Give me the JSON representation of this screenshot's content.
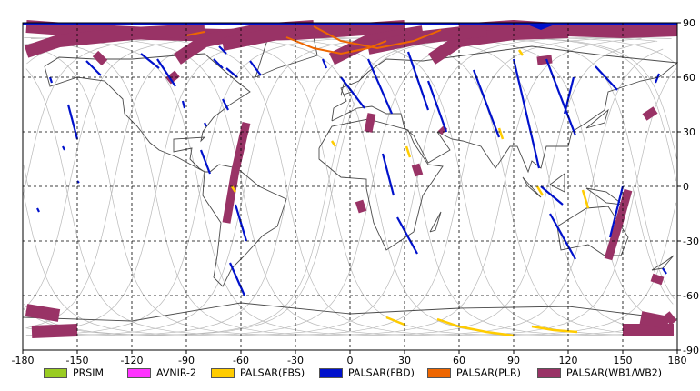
{
  "map": {
    "x_ticks": [
      "-180",
      "-150",
      "-120",
      "-90",
      "-60",
      "-30",
      "0",
      "30",
      "60",
      "90",
      "120",
      "150",
      "180"
    ],
    "y_ticks": [
      "90",
      "60",
      "30",
      "0",
      "-30",
      "-60",
      "-90"
    ],
    "lon_range": [
      -180,
      180
    ],
    "lat_range": [
      -90,
      90
    ],
    "grid": true,
    "background": "#ffffff"
  },
  "legend": [
    {
      "label": "PRSIM",
      "color": "#99cc22"
    },
    {
      "label": "AVNIR-2",
      "color": "#ff33ff"
    },
    {
      "label": "PALSAR(FBS)",
      "color": "#ffcc00"
    },
    {
      "label": "PALSAR(FBD)",
      "color": "#0011cc"
    },
    {
      "label": "PALSAR(PLR)",
      "color": "#ee6600"
    },
    {
      "label": "PALSAR(WB1/WB2)",
      "color": "#993366"
    }
  ],
  "coverage": {
    "fbd": [
      [
        [
          -145,
          69
        ],
        [
          -137,
          61
        ]
      ],
      [
        [
          -165,
          60
        ],
        [
          -164,
          57
        ]
      ],
      [
        [
          -155,
          45
        ],
        [
          -150,
          26
        ]
      ],
      [
        [
          -158,
          22
        ],
        [
          -157,
          20
        ]
      ],
      [
        [
          -150,
          3
        ],
        [
          -149,
          2
        ]
      ],
      [
        [
          -172,
          -12
        ],
        [
          -171,
          -14
        ]
      ],
      [
        [
          -106,
          70
        ],
        [
          -96,
          55
        ]
      ],
      [
        [
          -92,
          47
        ],
        [
          -91,
          43
        ]
      ],
      [
        [
          -82,
          20
        ],
        [
          -77,
          7
        ]
      ],
      [
        [
          -80,
          35
        ],
        [
          -79,
          33
        ]
      ],
      [
        [
          -70,
          48
        ],
        [
          -67,
          42
        ]
      ],
      [
        [
          -55,
          69
        ],
        [
          -49,
          61
        ]
      ],
      [
        [
          -63,
          -10
        ],
        [
          -57,
          -30
        ]
      ],
      [
        [
          -66,
          -42
        ],
        [
          -58,
          -60
        ]
      ],
      [
        [
          -68,
          65
        ],
        [
          -62,
          60
        ]
      ],
      [
        [
          -115,
          73
        ],
        [
          -105,
          65
        ]
      ],
      [
        [
          -72,
          77
        ],
        [
          -68,
          73
        ]
      ],
      [
        [
          -5,
          60
        ],
        [
          8,
          43
        ]
      ],
      [
        [
          32,
          74
        ],
        [
          43,
          42
        ]
      ],
      [
        [
          10,
          70
        ],
        [
          23,
          40
        ]
      ],
      [
        [
          -15,
          70
        ],
        [
          -13,
          65
        ]
      ],
      [
        [
          18,
          18
        ],
        [
          24,
          -5
        ]
      ],
      [
        [
          26,
          -17
        ],
        [
          37,
          -37
        ]
      ],
      [
        [
          43,
          58
        ],
        [
          53,
          30
        ]
      ],
      [
        [
          68,
          64
        ],
        [
          82,
          27
        ]
      ],
      [
        [
          90,
          70
        ],
        [
          104,
          10
        ]
      ],
      [
        [
          108,
          70
        ],
        [
          124,
          28
        ]
      ],
      [
        [
          123,
          60
        ],
        [
          118,
          40
        ]
      ],
      [
        [
          135,
          66
        ],
        [
          147,
          53
        ]
      ],
      [
        [
          105,
          0
        ],
        [
          117,
          -10
        ]
      ],
      [
        [
          110,
          -15
        ],
        [
          124,
          -40
        ]
      ],
      [
        [
          150,
          0
        ],
        [
          143,
          -28
        ]
      ],
      [
        [
          172,
          -45
        ],
        [
          174,
          -48
        ]
      ],
      [
        [
          170,
          62
        ],
        [
          168,
          57
        ]
      ],
      [
        [
          -75,
          70
        ],
        [
          -70,
          65
        ]
      ]
    ],
    "fbs": [
      [
        [
          93,
          75
        ],
        [
          95,
          72
        ]
      ],
      [
        [
          82,
          32
        ],
        [
          84,
          26
        ]
      ],
      [
        [
          31,
          22
        ],
        [
          33,
          16
        ]
      ],
      [
        [
          -10,
          25
        ],
        [
          -8,
          22
        ]
      ],
      [
        [
          103,
          0
        ],
        [
          106,
          -5
        ]
      ],
      [
        [
          128,
          -2
        ],
        [
          131,
          -12
        ]
      ],
      [
        [
          -65,
          0
        ],
        [
          -63,
          -3
        ]
      ]
    ],
    "fbs_curves": [
      [
        [
          20,
          -72
        ],
        [
          25,
          -74
        ],
        [
          30,
          -76
        ]
      ],
      [
        [
          48,
          -73
        ],
        [
          60,
          -77
        ],
        [
          75,
          -80
        ],
        [
          90,
          -82
        ]
      ],
      [
        [
          100,
          -77
        ],
        [
          112,
          -79
        ],
        [
          125,
          -80
        ]
      ]
    ],
    "plr_curves": [
      [
        [
          -20,
          88
        ],
        [
          -5,
          80
        ],
        [
          15,
          76
        ],
        [
          35,
          80
        ],
        [
          50,
          86
        ]
      ],
      [
        [
          -35,
          82
        ],
        [
          -20,
          76
        ],
        [
          -5,
          73
        ],
        [
          10,
          76
        ],
        [
          20,
          80
        ]
      ],
      [
        [
          -90,
          83
        ],
        [
          -80,
          85
        ]
      ]
    ],
    "wb_bands": [
      [
        [
          -178,
          88
        ],
        [
          -150,
          86
        ],
        [
          -110,
          84
        ],
        [
          -70,
          83
        ],
        [
          -30,
          84
        ],
        [
          0,
          86
        ],
        [
          30,
          88
        ]
      ],
      [
        [
          60,
          86
        ],
        [
          90,
          88
        ],
        [
          120,
          86
        ],
        [
          150,
          85
        ],
        [
          180,
          86
        ]
      ],
      [
        [
          -178,
          74
        ],
        [
          -160,
          80
        ],
        [
          -120,
          84
        ],
        [
          -80,
          86
        ]
      ],
      [
        [
          -95,
          70
        ],
        [
          -80,
          80
        ],
        [
          -50,
          86
        ],
        [
          -20,
          88
        ]
      ],
      [
        [
          -10,
          70
        ],
        [
          10,
          80
        ],
        [
          40,
          85
        ]
      ],
      [
        [
          45,
          70
        ],
        [
          60,
          80
        ],
        [
          90,
          84
        ],
        [
          120,
          85
        ]
      ],
      [
        [
          -70,
          78
        ],
        [
          -40,
          84
        ],
        [
          -10,
          86
        ]
      ],
      [
        [
          10,
          76
        ],
        [
          40,
          82
        ],
        [
          75,
          86
        ]
      ],
      [
        [
          -178,
          -68
        ],
        [
          -160,
          -71
        ]
      ],
      [
        [
          -175,
          -80
        ],
        [
          -150,
          -79
        ]
      ],
      [
        [
          150,
          -79
        ],
        [
          178,
          -79
        ]
      ],
      [
        [
          160,
          -72
        ],
        [
          175,
          -75
        ]
      ]
    ],
    "wb_strips": [
      [
        [
          -57,
          35
        ],
        [
          -63,
          9
        ],
        [
          -68,
          -20
        ]
      ],
      [
        [
          153,
          -2
        ],
        [
          148,
          -20
        ],
        [
          142,
          -40
        ]
      ],
      [
        [
          166,
          -50
        ],
        [
          172,
          -52
        ]
      ],
      [
        [
          -135,
          68
        ],
        [
          -140,
          73
        ]
      ],
      [
        [
          -95,
          62
        ],
        [
          -100,
          58
        ]
      ],
      [
        [
          50,
          32
        ],
        [
          52,
          30
        ]
      ],
      [
        [
          36,
          12
        ],
        [
          38,
          6
        ]
      ],
      [
        [
          12,
          40
        ],
        [
          10,
          30
        ]
      ],
      [
        [
          5,
          -8
        ],
        [
          7,
          -14
        ]
      ],
      [
        [
          103,
          69
        ],
        [
          111,
          70
        ]
      ],
      [
        [
          162,
          38
        ],
        [
          168,
          42
        ]
      ],
      [
        [
          174,
          -70
        ],
        [
          178,
          -75
        ]
      ]
    ]
  }
}
